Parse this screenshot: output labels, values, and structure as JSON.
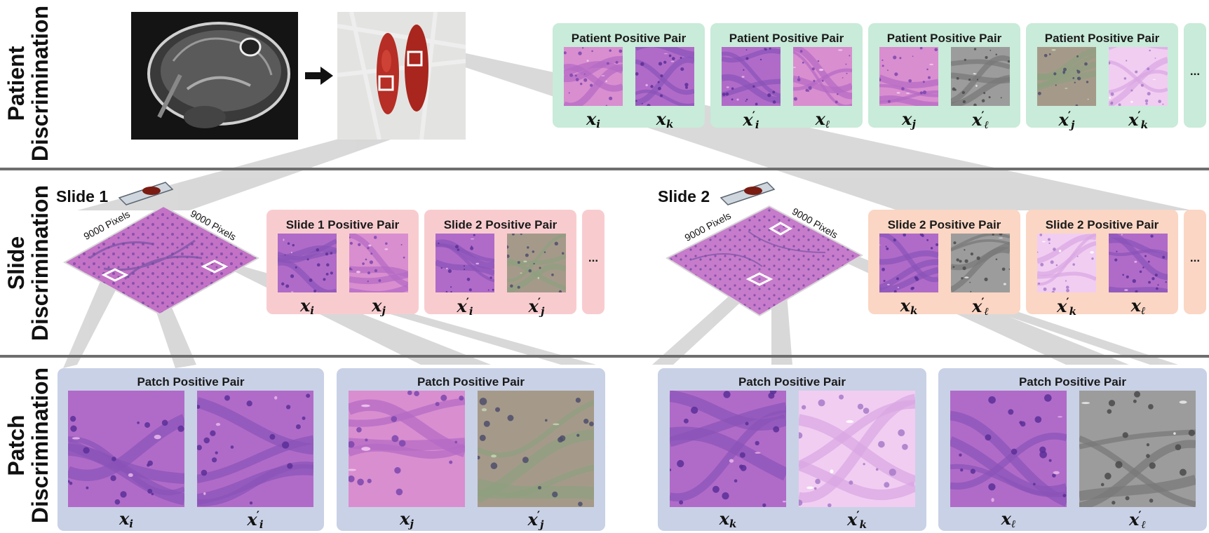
{
  "rows": {
    "patient": {
      "line1": "Patient",
      "line2": "Discrimination"
    },
    "slide": {
      "line1": "Slide",
      "line2": "Discrimination"
    },
    "patch": {
      "line1": "Patch",
      "line2": "Discrimination"
    }
  },
  "patient_pairs": [
    {
      "title": "Patient Positive Pair",
      "left_var": "x",
      "left_sub": "i",
      "left_prime": "",
      "right_var": "x",
      "right_sub": "k",
      "right_prime": ""
    },
    {
      "title": "Patient Positive Pair",
      "left_var": "x",
      "left_sub": "i",
      "left_prime": "′",
      "right_var": "x",
      "right_sub": "ℓ",
      "right_prime": ""
    },
    {
      "title": "Patient Positive Pair",
      "left_var": "x",
      "left_sub": "j",
      "left_prime": "",
      "right_var": "x",
      "right_sub": "ℓ",
      "right_prime": "′"
    },
    {
      "title": "Patient Positive Pair",
      "left_var": "x",
      "left_sub": "j",
      "left_prime": "′",
      "right_var": "x",
      "right_sub": "k",
      "right_prime": "′"
    }
  ],
  "slides": [
    {
      "title": "Slide 1",
      "width_label": "9000 Pixels",
      "height_label": "9000 Pixels"
    },
    {
      "title": "Slide 2",
      "width_label": "9000 Pixels",
      "height_label": "9000 Pixels"
    }
  ],
  "slide_pairs": [
    {
      "title": "Slide 1 Positive Pair",
      "left_var": "x",
      "left_sub": "i",
      "left_prime": "",
      "right_var": "x",
      "right_sub": "j",
      "right_prime": ""
    },
    {
      "title": "Slide 2 Positive Pair",
      "left_var": "x",
      "left_sub": "i",
      "left_prime": "′",
      "right_var": "x",
      "right_sub": "j",
      "right_prime": "′"
    },
    {
      "title": "Slide 2 Positive Pair",
      "left_var": "x",
      "left_sub": "k",
      "left_prime": "",
      "right_var": "x",
      "right_sub": "ℓ",
      "right_prime": "′"
    },
    {
      "title": "Slide 2 Positive Pair",
      "left_var": "x",
      "left_sub": "k",
      "left_prime": "′",
      "right_var": "x",
      "right_sub": "ℓ",
      "right_prime": ""
    }
  ],
  "patch_pairs": [
    {
      "title": "Patch Positive Pair",
      "left_var": "x",
      "left_sub": "i",
      "left_prime": "",
      "right_var": "x",
      "right_sub": "i",
      "right_prime": "′"
    },
    {
      "title": "Patch Positive Pair",
      "left_var": "x",
      "left_sub": "j",
      "left_prime": "",
      "right_var": "x",
      "right_sub": "j",
      "right_prime": "′"
    },
    {
      "title": "Patch Positive Pair",
      "left_var": "x",
      "left_sub": "k",
      "left_prime": "",
      "right_var": "x",
      "right_sub": "k",
      "right_prime": "′"
    },
    {
      "title": "Patch Positive Pair",
      "left_var": "x",
      "left_sub": "ℓ",
      "left_prime": "",
      "right_var": "x",
      "right_sub": "ℓ",
      "right_prime": "′"
    }
  ],
  "ellipsis": "...",
  "colors": {
    "patient_card": "#c9ebd9",
    "slide1_card": "#f8cccf",
    "slide2_card": "#fbd6c4",
    "patch_card": "#c9d1e6",
    "divider": "#6e6e6e",
    "he_pink": "#d985cf",
    "he_purple": "#7a4fae"
  }
}
